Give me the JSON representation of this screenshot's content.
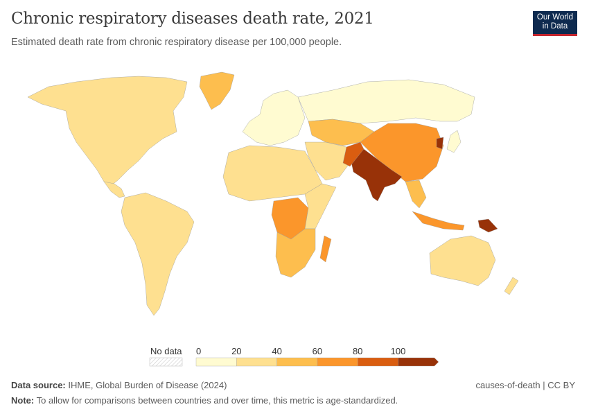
{
  "header": {
    "title": "Chronic respiratory diseases death rate, 2021",
    "subtitle": "Estimated death rate from chronic respiratory disease per 100,000 people."
  },
  "logo": {
    "line1": "Our World",
    "line2": "in Data",
    "bg": "#0e2a4f",
    "accent": "#c4262e"
  },
  "legend": {
    "no_data": "No data",
    "ticks": [
      "0",
      "20",
      "40",
      "60",
      "80",
      "100"
    ],
    "bins": [
      {
        "range": "0-20",
        "color": "#fffbd1"
      },
      {
        "range": "20-40",
        "color": "#fee090"
      },
      {
        "range": "40-60",
        "color": "#fdbe4e"
      },
      {
        "range": "60-80",
        "color": "#fb962b"
      },
      {
        "range": "80-100",
        "color": "#d95d10"
      },
      {
        "range": "100+",
        "color": "#983208"
      }
    ]
  },
  "footer": {
    "source_label": "Data source:",
    "source": "IHME, Global Burden of Disease (2024)",
    "note_label": "Note:",
    "note": "To allow for comparisons between countries and over time, this metric is age-standardized.",
    "license": "causes-of-death | CC BY"
  }
}
